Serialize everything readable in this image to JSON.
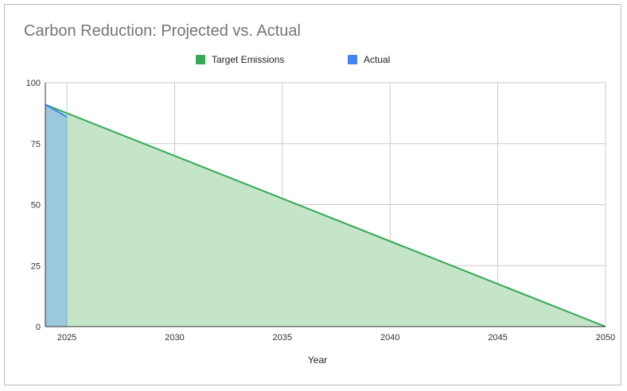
{
  "chart_data": {
    "type": "area",
    "title": "Carbon Reduction: Projected vs. Actual",
    "xlabel": "Year",
    "ylabel": "",
    "xlim": [
      2024,
      2050
    ],
    "ylim": [
      0,
      100
    ],
    "x_ticks": [
      2025,
      2030,
      2035,
      2040,
      2045,
      2050
    ],
    "y_ticks": [
      0,
      25,
      50,
      75,
      100
    ],
    "grid": true,
    "legend_position": "top-center",
    "series": [
      {
        "name": "Target Emissions",
        "color": "#34a853",
        "fill": "#c5e5c9",
        "points": [
          [
            2024,
            91
          ],
          [
            2050,
            0
          ]
        ]
      },
      {
        "name": "Actual",
        "color": "#4285f4",
        "fill": "#9ac8dc",
        "points": [
          [
            2024,
            91
          ],
          [
            2025,
            86
          ]
        ]
      }
    ]
  }
}
